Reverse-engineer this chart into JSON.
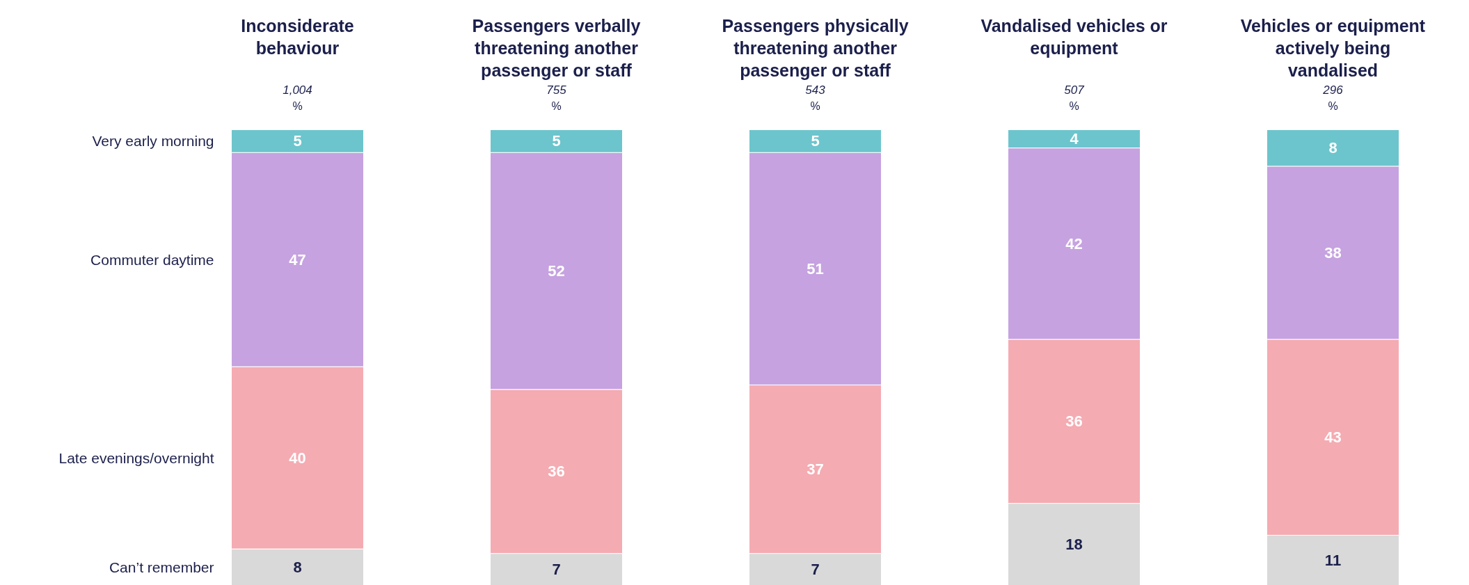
{
  "chart_data": [
    {
      "type": "bar",
      "stacked": true,
      "title": "Inconsiderate behaviour",
      "subtitle": "1,004",
      "annotations": [
        "%"
      ],
      "categories": [
        null
      ],
      "data_labels": true,
      "series": [
        {
          "name": "Can’t remember",
          "color": "#d9d9d9",
          "values": [
            8
          ]
        },
        {
          "name": "Late evenings/overnight",
          "color": "#f4abb2",
          "values": [
            40
          ]
        },
        {
          "name": "Commuter daytime",
          "color": "#c6a2e0",
          "values": [
            47
          ]
        },
        {
          "name": "Very early morning",
          "color": "#6cc5cc",
          "values": [
            5
          ]
        }
      ]
    },
    {
      "type": "bar",
      "stacked": true,
      "title": "Passengers verbally threatening another passenger or staff",
      "subtitle": "755",
      "annotations": [
        "%"
      ],
      "categories": [
        null
      ],
      "data_labels": true,
      "series": [
        {
          "color": "#d9d9d9",
          "values": [
            7
          ]
        },
        {
          "color": "#f4abb2",
          "values": [
            36
          ]
        },
        {
          "color": "#c6a2e0",
          "values": [
            52
          ]
        },
        {
          "color": "#6cc5cc",
          "values": [
            5
          ]
        }
      ]
    },
    {
      "type": "bar",
      "stacked": true,
      "title": "Passengers physically threatening another passenger or staff",
      "subtitle": "543",
      "annotations": [
        "%"
      ],
      "categories": [
        null
      ],
      "data_labels": true,
      "series": [
        {
          "color": "#d9d9d9",
          "values": [
            7
          ]
        },
        {
          "color": "#f4abb2",
          "values": [
            37
          ]
        },
        {
          "color": "#c6a2e0",
          "values": [
            51
          ]
        },
        {
          "color": "#6cc5cc",
          "values": [
            5
          ]
        }
      ]
    },
    {
      "type": "bar",
      "stacked": true,
      "title": "Vandalised vehicles or equipment",
      "subtitle": "507",
      "annotations": [
        "%"
      ],
      "categories": [
        null
      ],
      "data_labels": true,
      "series": [
        {
          "color": "#d9d9d9",
          "values": [
            18
          ]
        },
        {
          "color": "#f4abb2",
          "values": [
            36
          ]
        },
        {
          "color": "#c6a2e0",
          "values": [
            42
          ]
        },
        {
          "color": "#6cc5cc",
          "values": [
            4
          ]
        }
      ]
    },
    {
      "type": "bar",
      "stacked": true,
      "title": "Vehicles or equipment actively being vandalised",
      "subtitle": "296",
      "annotations": [
        "%"
      ],
      "categories": [
        null
      ],
      "data_labels": true,
      "series": [
        {
          "color": "#d9d9d9",
          "values": [
            11
          ]
        },
        {
          "color": "#f4abb2",
          "values": [
            43
          ]
        },
        {
          "color": "#c6a2e0",
          "values": [
            38
          ]
        },
        {
          "color": "#6cc5cc",
          "values": [
            8
          ]
        }
      ]
    }
  ]
}
